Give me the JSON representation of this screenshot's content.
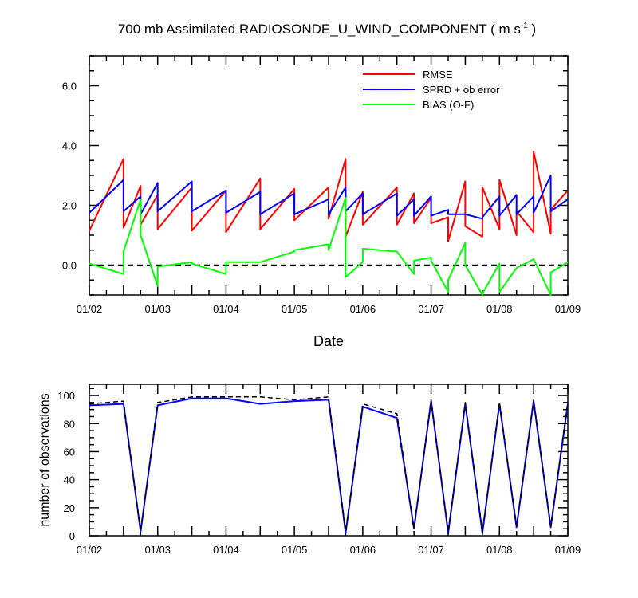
{
  "chart_data": [
    {
      "type": "line",
      "title_main": "700 mb Assimilated RADIOSONDE_U_WIND_COMPONENT ( m s",
      "title_sup": "-1",
      "title_end": " )",
      "xlabel": "Date",
      "ylabel": "",
      "x_range": [
        0,
        7
      ],
      "ylim": [
        -1.0,
        7.0
      ],
      "y_ticks": [
        0.0,
        2.0,
        4.0,
        6.0
      ],
      "y_tick_labels": [
        "0.0",
        "2.0",
        "4.0",
        "6.0"
      ],
      "x_ticks": [
        0,
        1,
        2,
        3,
        4,
        5,
        6,
        7
      ],
      "x_tick_labels": [
        "01/02",
        "01/03",
        "01/04",
        "01/05",
        "01/06",
        "01/07",
        "01/08",
        "01/09"
      ],
      "reference_line": 0.0,
      "legend": [
        "RMSE",
        "SPRD + ob error",
        "BIAS (O-F)"
      ],
      "series": [
        {
          "name": "RMSE",
          "color": "#ff0000",
          "x": [
            0,
            0.5,
            0.5,
            0.75,
            0.75,
            1,
            1,
            1.5,
            1.5,
            2,
            2,
            2.5,
            2.5,
            3,
            3,
            3.5,
            3.5,
            3.75,
            3.75,
            4,
            4,
            4.5,
            4.5,
            4.75,
            4.75,
            5,
            5,
            5.25,
            5.25,
            5.5,
            5.5,
            5.75,
            5.75,
            6,
            6,
            6.25,
            6.25,
            6.5,
            6.5,
            6.75,
            6.75,
            7
          ],
          "values": [
            1.15,
            3.55,
            1.25,
            2.65,
            1.35,
            2.35,
            1.2,
            2.6,
            1.15,
            2.5,
            1.1,
            2.9,
            1.2,
            2.55,
            1.5,
            2.6,
            1.55,
            3.55,
            0.95,
            2.45,
            1.35,
            2.6,
            1.35,
            2.4,
            1.4,
            2.25,
            1.4,
            1.6,
            0.8,
            2.8,
            1.3,
            0.95,
            2.6,
            1.2,
            2.85,
            1.0,
            1.8,
            1.1,
            3.8,
            1.05,
            1.85,
            2.5
          ]
        },
        {
          "name": "SPRD + ob error",
          "color": "#0000ff",
          "x": [
            0,
            0.5,
            0.5,
            0.75,
            0.75,
            1,
            1,
            1.5,
            1.5,
            2,
            2,
            2.5,
            2.5,
            3,
            3,
            3.5,
            3.5,
            3.75,
            3.75,
            4,
            4,
            4.5,
            4.5,
            4.75,
            4.75,
            5,
            5,
            5.25,
            5.25,
            5.5,
            5.5,
            5.75,
            5.75,
            6,
            6,
            6.25,
            6.25,
            6.5,
            6.5,
            6.75,
            6.75,
            7
          ],
          "values": [
            1.75,
            2.85,
            1.8,
            2.3,
            1.7,
            2.75,
            1.8,
            2.8,
            1.8,
            2.5,
            1.75,
            2.45,
            1.7,
            2.4,
            1.7,
            2.2,
            1.7,
            2.6,
            1.8,
            2.4,
            1.7,
            2.4,
            1.65,
            2.2,
            1.65,
            2.3,
            1.65,
            1.85,
            1.7,
            1.7,
            1.7,
            1.55,
            1.6,
            2.3,
            1.65,
            2.35,
            1.7,
            2.3,
            1.75,
            3.0,
            1.8,
            2.2
          ]
        },
        {
          "name": "BIAS (O-F)",
          "color": "#00ff00",
          "x": [
            0,
            0.5,
            0.5,
            0.75,
            0.75,
            1,
            1,
            1.5,
            1.5,
            2,
            2,
            2.5,
            2.5,
            3,
            3,
            3.5,
            3.5,
            3.75,
            3.75,
            4,
            4,
            4.5,
            4.5,
            4.75,
            4.75,
            5,
            5,
            5.25,
            5.25,
            5.5,
            5.5,
            5.75,
            5.75,
            6,
            6,
            6.25,
            6.25,
            6.5,
            6.5,
            6.75,
            6.75,
            7
          ],
          "values": [
            0.05,
            -0.3,
            0.45,
            2.2,
            1.0,
            -0.7,
            -0.05,
            0.1,
            0.05,
            -0.3,
            0.1,
            0.1,
            0.1,
            0.45,
            0.5,
            0.7,
            0.5,
            2.25,
            -0.4,
            0.1,
            0.55,
            0.45,
            0.45,
            -0.3,
            0.15,
            0.25,
            0.15,
            -0.9,
            -0.5,
            0.75,
            0.0,
            -1.0,
            -0.95,
            0.05,
            -0.9,
            -0.1,
            -0.1,
            0.2,
            0.2,
            -1.05,
            -0.25,
            0.1
          ]
        }
      ]
    },
    {
      "type": "line",
      "title": "",
      "xlabel": "",
      "ylabel": "number of observations",
      "x_range": [
        0,
        7
      ],
      "ylim": [
        0,
        108
      ],
      "y_ticks": [
        0,
        20,
        40,
        60,
        80,
        100
      ],
      "y_tick_labels": [
        "0",
        "20",
        "40",
        "60",
        "80",
        "100"
      ],
      "x_ticks": [
        0,
        1,
        2,
        3,
        4,
        5,
        6,
        7
      ],
      "x_tick_labels": [
        "01/02",
        "01/03",
        "01/04",
        "01/05",
        "01/06",
        "01/07",
        "01/08",
        "01/09"
      ],
      "series": [
        {
          "name": "observations (dashed)",
          "color": "#000000",
          "dashed": true,
          "x": [
            0,
            0.5,
            0.75,
            1,
            1.5,
            2,
            2.5,
            3,
            3.5,
            3.75,
            4,
            4.5,
            4.75,
            5,
            5.25,
            5.5,
            5.75,
            6,
            6.25,
            6.5,
            6.75,
            7
          ],
          "values": [
            94,
            96,
            3,
            95,
            99,
            99,
            99,
            97,
            99,
            3,
            94,
            87,
            5,
            97,
            3,
            95,
            3,
            95,
            7,
            97,
            7,
            95
          ]
        },
        {
          "name": "observations (solid)",
          "color": "#0000ff",
          "dashed": false,
          "x": [
            0,
            0.5,
            0.75,
            1,
            1.5,
            2,
            2.5,
            3,
            3.5,
            3.75,
            4,
            4.5,
            4.75,
            5,
            5.25,
            5.5,
            5.75,
            6,
            6.25,
            6.5,
            6.75,
            7
          ],
          "values": [
            93,
            94,
            3,
            93,
            98,
            98,
            94,
            96,
            97,
            2,
            92,
            84,
            5,
            96,
            2,
            94,
            2,
            94,
            6,
            96,
            6,
            94
          ]
        }
      ]
    }
  ]
}
